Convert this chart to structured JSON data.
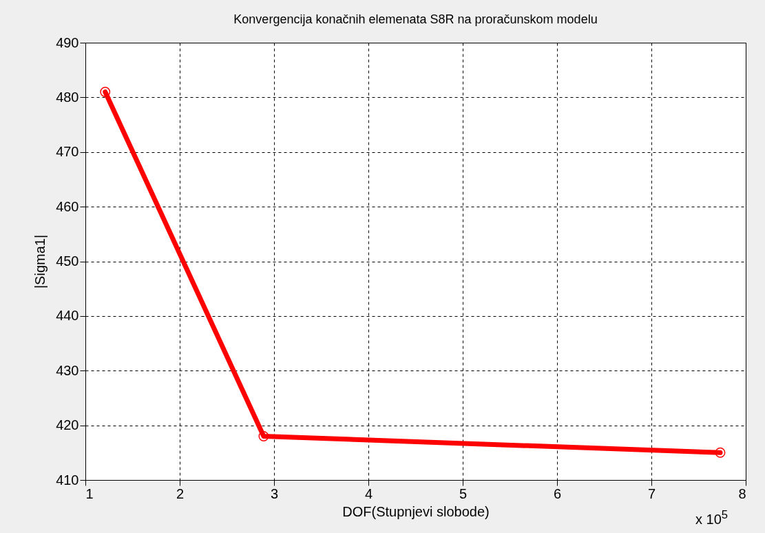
{
  "chart_data": {
    "type": "line",
    "title": "Konvergencija konačnih elemenata S8R na proračunskom modelu",
    "xlabel": "DOF(Stupnjevi slobode)",
    "ylabel": "|Sigma1|",
    "x": [
      1.21,
      2.89,
      7.73
    ],
    "series": [
      {
        "color": "#ff0000",
        "values": [
          481,
          418,
          415
        ]
      }
    ],
    "xlim": [
      1,
      8
    ],
    "xticks": [
      1,
      2,
      3,
      4,
      5,
      6,
      7,
      8
    ],
    "ylim": [
      410,
      490
    ],
    "yticks": [
      410,
      420,
      430,
      440,
      450,
      460,
      470,
      480,
      490
    ],
    "grid": true,
    "marker": "circle",
    "line_style": "solid",
    "annotations": [
      "x 10$^{5}$"
    ]
  }
}
